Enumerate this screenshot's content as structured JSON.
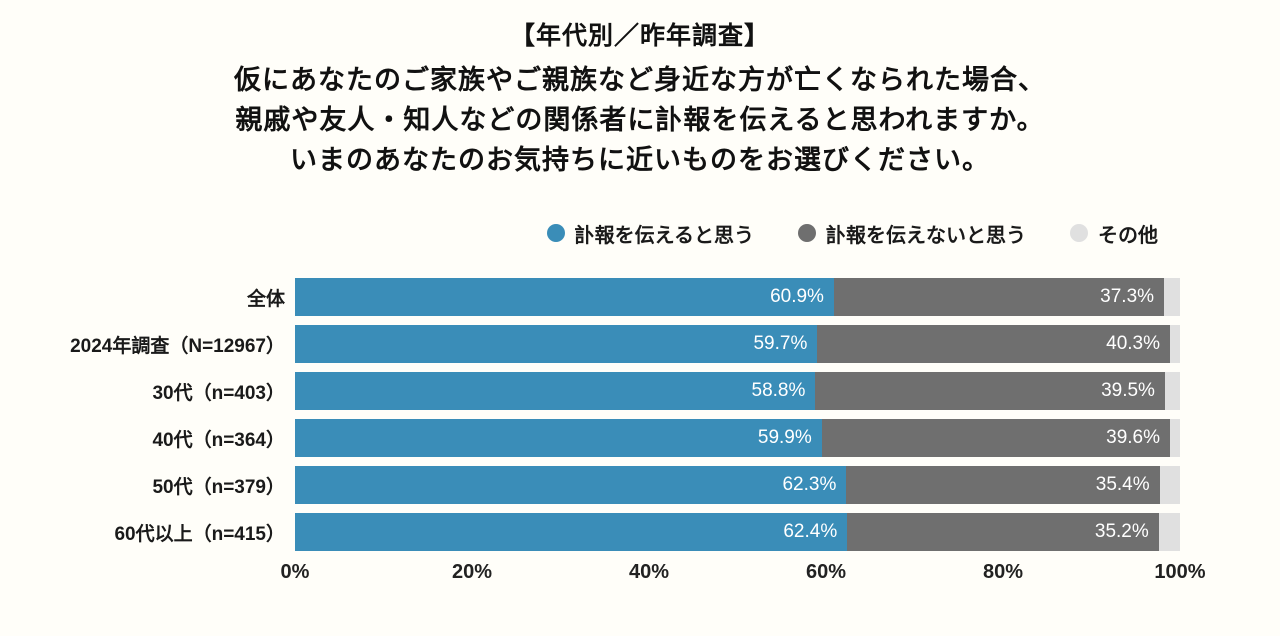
{
  "header": {
    "title": "【年代別／昨年調査】",
    "subtitle_lines": [
      "仮にあなたのご家族やご親族など身近な方が亡くなられた場合、",
      "親戚や友人・知人などの関係者に訃報を伝えると思われますか。",
      "いまのあなたのお気持ちに近いものをお選びください。"
    ]
  },
  "legend": {
    "items": [
      {
        "label": "訃報を伝えると思う",
        "color": "#3a8db8"
      },
      {
        "label": "訃報を伝えないと思う",
        "color": "#6f6f6f"
      },
      {
        "label": "その他",
        "color": "#e0e0e0"
      }
    ]
  },
  "chart_data": {
    "type": "bar",
    "orientation": "horizontal-stacked",
    "title": "【年代別／昨年調査】",
    "categories": [
      "全体",
      "2024年調査（N=12967）",
      "30代（n=403）",
      "40代（n=364）",
      "50代（n=379）",
      "60代以上（n=415）"
    ],
    "series": [
      {
        "name": "訃報を伝えると思う",
        "color": "#3a8db8",
        "values": [
          60.9,
          59.7,
          58.8,
          59.9,
          62.3,
          62.4
        ],
        "labels": [
          "60.9%",
          "59.7%",
          "58.8%",
          "59.9%",
          "62.3%",
          "62.4%"
        ],
        "show_labels": true
      },
      {
        "name": "訃報を伝えないと思う",
        "color": "#6f6f6f",
        "values": [
          37.3,
          40.3,
          39.5,
          39.6,
          35.4,
          35.2
        ],
        "labels": [
          "37.3%",
          "40.3%",
          "39.5%",
          "39.6%",
          "35.4%",
          "35.2%"
        ],
        "show_labels": true
      },
      {
        "name": "その他",
        "color": "#e0e0e0",
        "values": [
          1.8,
          0.0,
          1.7,
          0.5,
          2.3,
          2.4
        ],
        "labels": [
          "1.8%",
          "0.0%",
          "1.7%",
          "0.5%",
          "2.3%",
          "2.4%"
        ],
        "show_labels": false
      }
    ],
    "x_ticks": [
      "0%",
      "20%",
      "40%",
      "60%",
      "80%",
      "100%"
    ],
    "xlim": [
      0,
      100
    ],
    "grid": false,
    "legend_position": "top-right",
    "value_label_color": "#ffffff"
  }
}
